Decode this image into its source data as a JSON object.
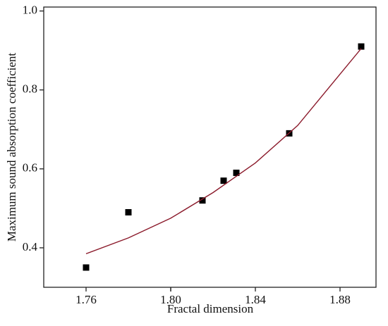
{
  "chart_data": {
    "type": "scatter",
    "x_label": "Fractal dimension",
    "y_label": "Maximum sound absorption coefficient",
    "xlim": [
      1.74,
      1.897
    ],
    "ylim": [
      0.3,
      1.01
    ],
    "xticks": [
      1.76,
      1.8,
      {
        "value": 1.8,
        "label": "1.80"
      },
      1.84,
      1.88
    ],
    "yticks": [
      {
        "value": 0.4,
        "label": "0.4"
      },
      {
        "value": 0.6,
        "label": "0.6"
      },
      {
        "value": 0.8,
        "label": "0.8"
      },
      {
        "value": 1.0,
        "label": "1.0"
      }
    ],
    "series": [
      {
        "type": "scatter",
        "color": "#000000",
        "x": [
          1.76,
          1.78,
          1.815,
          1.825,
          1.831,
          1.856,
          1.89
        ],
        "values": [
          0.35,
          0.49,
          0.52,
          0.57,
          0.59,
          0.69,
          0.91
        ]
      },
      {
        "type": "line",
        "color": "#8b1a2b",
        "x": [
          1.76,
          1.78,
          1.8,
          1.82,
          1.84,
          1.86,
          1.88,
          1.89
        ],
        "values": [
          0.385,
          0.425,
          0.475,
          0.54,
          0.615,
          0.71,
          0.84,
          0.905
        ]
      }
    ]
  }
}
